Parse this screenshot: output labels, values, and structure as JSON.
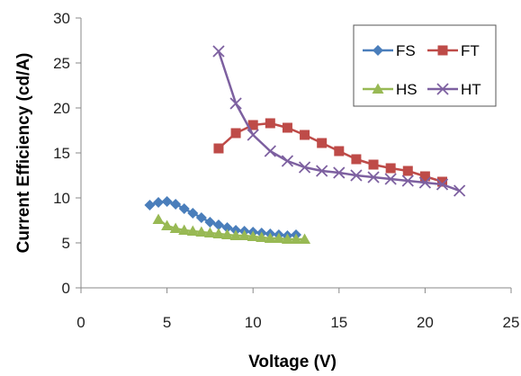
{
  "chart_data": {
    "type": "line",
    "title": "",
    "xlabel": "Voltage (V)",
    "ylabel": "Current Efficiency (cd/A)",
    "xlim": [
      0,
      25
    ],
    "ylim": [
      0,
      30
    ],
    "xticks": [
      0,
      5,
      10,
      15,
      20,
      25
    ],
    "yticks": [
      0,
      5,
      10,
      15,
      20,
      25,
      30
    ],
    "xtick_labels": [
      "0",
      "5",
      "10",
      "15",
      "20",
      "25"
    ],
    "ytick_labels": [
      "0",
      "5",
      "10",
      "15",
      "20",
      "25",
      "30"
    ],
    "grid": false,
    "legend_position": "top-right",
    "series": [
      {
        "name": "FS",
        "color": "#4a7ebb",
        "marker": "diamond",
        "x": [
          4,
          4.5,
          5,
          5.5,
          6,
          6.5,
          7,
          7.5,
          8,
          8.5,
          9,
          9.5,
          10,
          10.5,
          11,
          11.5,
          12,
          12.5
        ],
        "y": [
          9.2,
          9.5,
          9.6,
          9.3,
          8.8,
          8.3,
          7.8,
          7.3,
          7.0,
          6.7,
          6.4,
          6.3,
          6.2,
          6.1,
          6.0,
          5.9,
          5.8,
          5.9
        ]
      },
      {
        "name": "FT",
        "color": "#be4b48",
        "marker": "square",
        "x": [
          8,
          9,
          10,
          11,
          12,
          13,
          14,
          15,
          16,
          17,
          18,
          19,
          20,
          21
        ],
        "y": [
          15.5,
          17.2,
          18.1,
          18.3,
          17.8,
          17.0,
          16.1,
          15.2,
          14.3,
          13.7,
          13.3,
          13.0,
          12.4,
          11.8
        ]
      },
      {
        "name": "HS",
        "color": "#98b954",
        "marker": "triangle",
        "x": [
          4.5,
          5,
          5.5,
          6,
          6.5,
          7,
          7.5,
          8,
          8.5,
          9,
          9.5,
          10,
          10.5,
          11,
          11.5,
          12,
          12.5,
          13
        ],
        "y": [
          7.6,
          6.9,
          6.6,
          6.4,
          6.3,
          6.2,
          6.1,
          6.0,
          5.9,
          5.8,
          5.8,
          5.7,
          5.6,
          5.5,
          5.5,
          5.4,
          5.4,
          5.4
        ]
      },
      {
        "name": "HT",
        "color": "#7d60a0",
        "marker": "x",
        "x": [
          8,
          9,
          10,
          11,
          12,
          13,
          14,
          15,
          16,
          17,
          18,
          19,
          20,
          21,
          22
        ],
        "y": [
          26.3,
          20.5,
          17.0,
          15.2,
          14.1,
          13.4,
          13.0,
          12.8,
          12.5,
          12.3,
          12.1,
          11.9,
          11.7,
          11.5,
          10.8
        ]
      }
    ]
  }
}
